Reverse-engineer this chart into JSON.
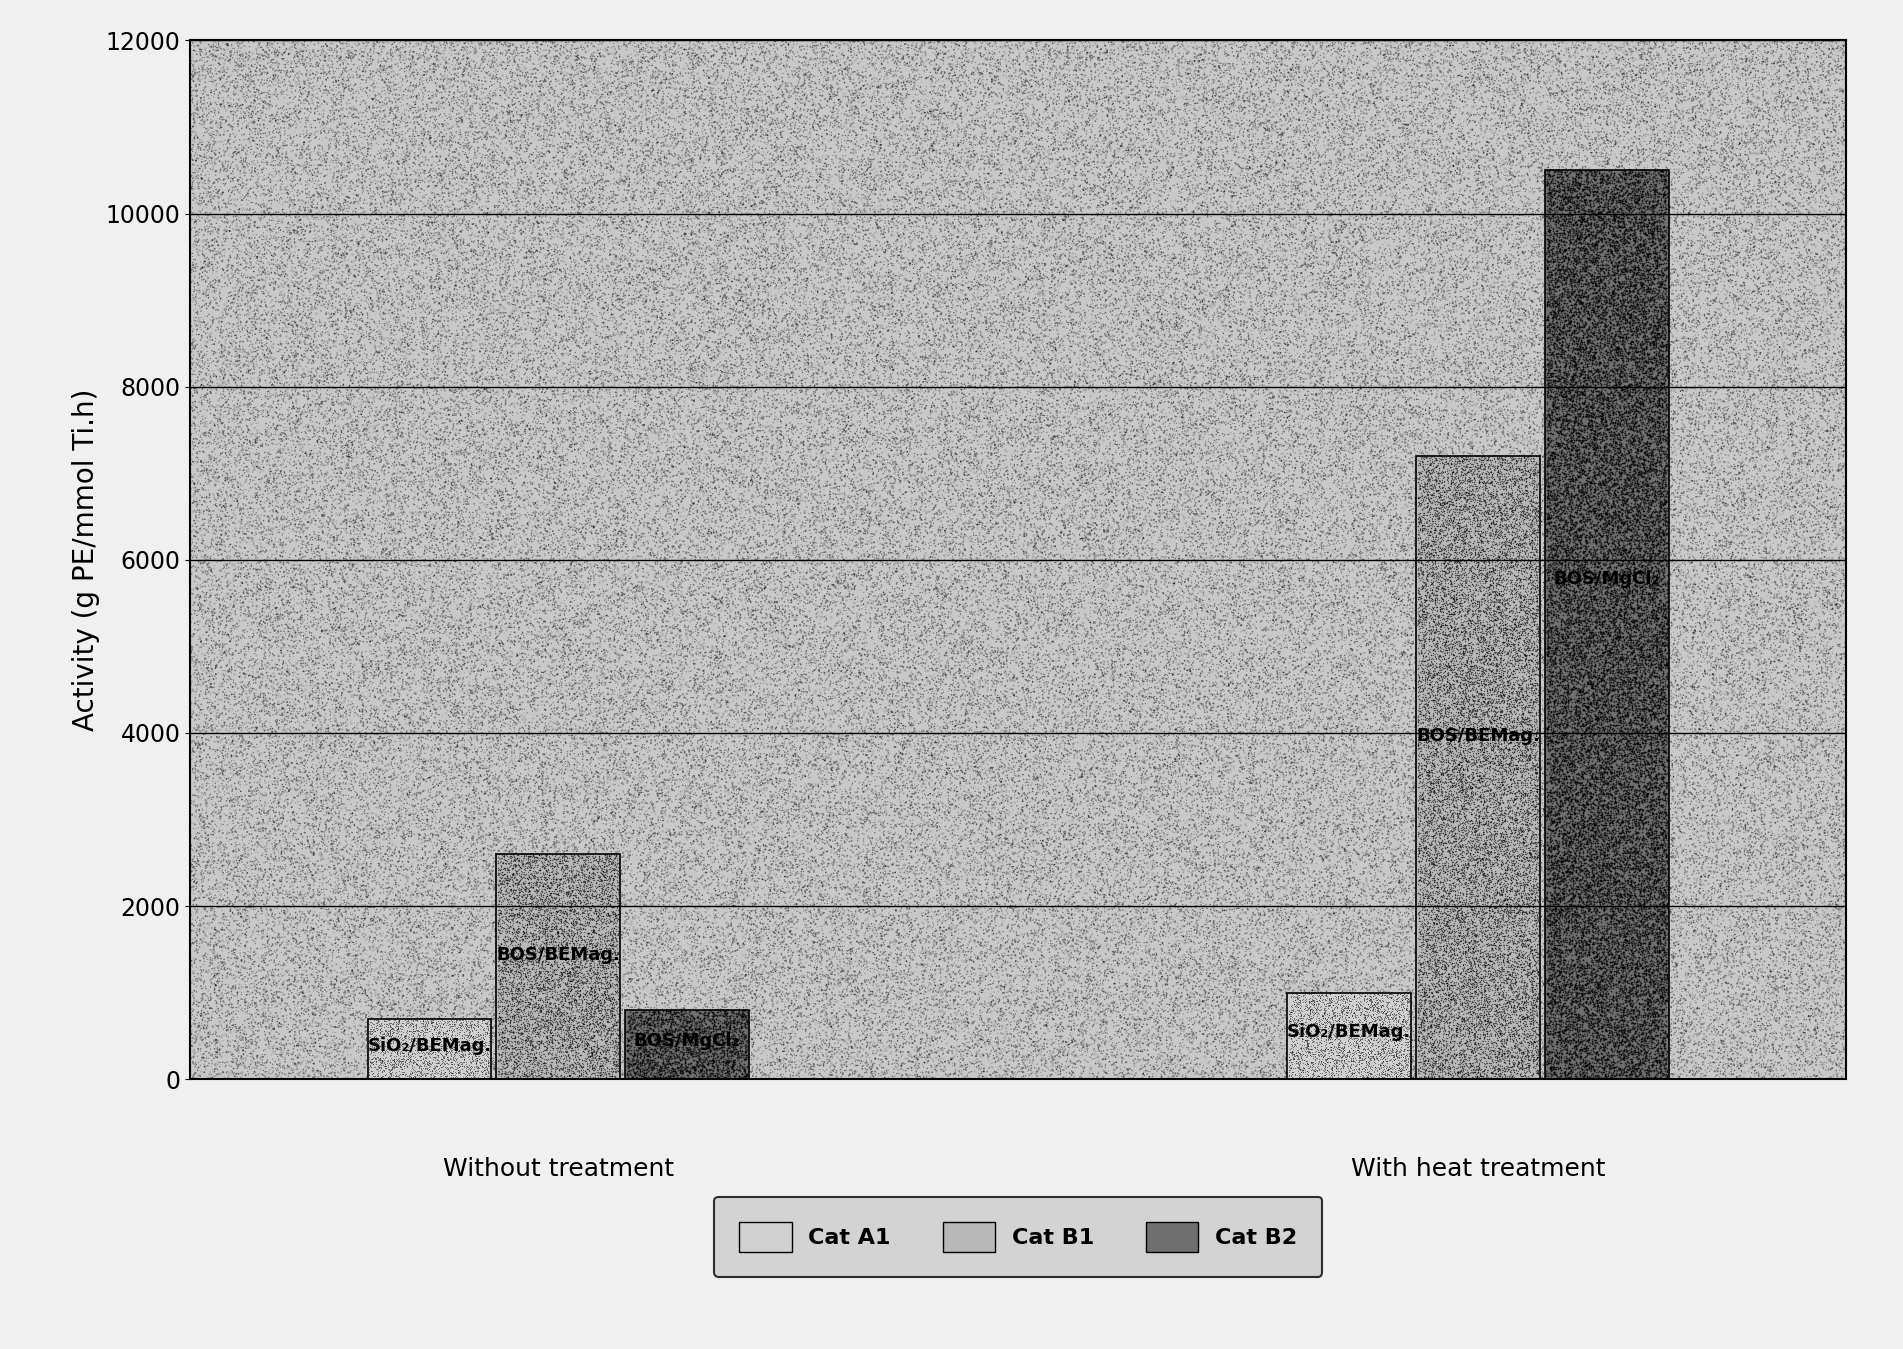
{
  "ylabel": "Activity (g PE/mmol Ti.h)",
  "ylim": [
    0,
    12000
  ],
  "yticks": [
    0,
    2000,
    4000,
    6000,
    8000,
    10000,
    12000
  ],
  "groups": [
    "Without treatment",
    "With heat treatment"
  ],
  "categories": [
    "Cat A1",
    "Cat B1",
    "Cat B2"
  ],
  "values": {
    "Without treatment": [
      700,
      2600,
      800
    ],
    "With heat treatment": [
      1000,
      7200,
      10500
    ]
  },
  "bar_labels": {
    "Without treatment": [
      "SiO₂/BEMag.",
      "BOS/BEMag.",
      "BOS/MgCl₂"
    ],
    "With heat treatment": [
      "SiO₂/BEMag.",
      "BOS/BEMag.",
      "BOS/MgCl₂"
    ]
  },
  "cat_colors_light": [
    "#d0d0d0",
    "#b8b8b8",
    "#707070"
  ],
  "cat_colors_dark": [
    "#a8a8a8",
    "#888888",
    "#303030"
  ],
  "figure_bg": "#f0f0f0",
  "plot_bg": "#c8c8c8",
  "legend_bg": "#cccccc",
  "bar_width": 0.28,
  "group_centers": [
    1.0,
    3.0
  ],
  "fontsize_ylabel": 20,
  "fontsize_tick": 17,
  "fontsize_bar_label": 13,
  "fontsize_group_label": 18,
  "fontsize_legend": 15
}
